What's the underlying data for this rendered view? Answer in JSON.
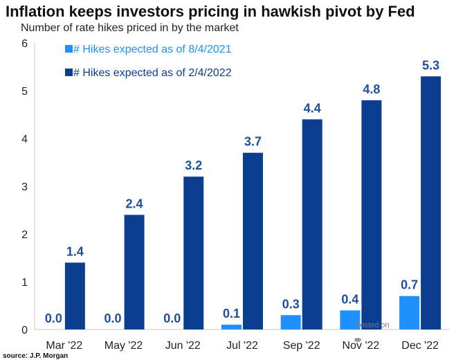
{
  "chart_data": {
    "type": "bar",
    "title": "Inflation keeps investors pricing in hawkish pivot by Fed",
    "subtitle": "Number of rate hikes priced in by the market",
    "categories": [
      "Mar '22",
      "May '22",
      "Jun '22",
      "Jul '22",
      "Sep '22",
      "Nov '22",
      "Dec '22"
    ],
    "series": [
      {
        "name": "# Hikes expected as of 8/4/2021",
        "color": "#1e90ff",
        "values": [
          0.0,
          0.0,
          0.0,
          0.1,
          0.3,
          0.4,
          0.7
        ],
        "labels": [
          "0.0",
          "0.0",
          "0.0",
          "0.1",
          "0.3",
          "0.4",
          "0.7"
        ]
      },
      {
        "name": "# Hikes expected as of 2/4/2022",
        "color": "#0b3d91",
        "values": [
          1.4,
          2.4,
          3.2,
          3.7,
          4.4,
          4.8,
          5.3
        ],
        "labels": [
          "1.4",
          "2.4",
          "3.2",
          "3.7",
          "4.4",
          "4.8",
          "5.3"
        ]
      }
    ],
    "ylim": [
      0,
      6
    ],
    "yticks": [
      "0",
      "1",
      "2",
      "3",
      "4",
      "5",
      "6"
    ],
    "xlabel": "",
    "ylabel": "",
    "grid": false,
    "legend": "top-left"
  },
  "source": "source: J.P. Morgan",
  "watermark": "Posted on"
}
